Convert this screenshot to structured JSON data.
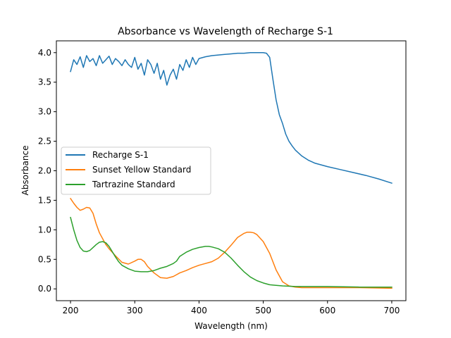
{
  "chart_data": {
    "type": "line",
    "title": "Absorbance vs Wavelength of Recharge S-1",
    "xlabel": "Wavelength (nm)",
    "ylabel": "Absorbance",
    "xlim": [
      178,
      722
    ],
    "ylim": [
      -0.2,
      4.2
    ],
    "xticks": [
      200,
      300,
      400,
      500,
      600,
      700
    ],
    "yticks": [
      0.0,
      0.5,
      1.0,
      1.5,
      2.0,
      2.5,
      3.0,
      3.5,
      4.0
    ],
    "xtick_labels": [
      "200",
      "300",
      "400",
      "500",
      "600",
      "700"
    ],
    "ytick_labels": [
      "0.0",
      "0.5",
      "1.0",
      "1.5",
      "2.0",
      "2.5",
      "3.0",
      "3.5",
      "4.0"
    ],
    "grid": false,
    "legend_position": "center-left",
    "series": [
      {
        "name": "Recharge S-1",
        "color": "#1f77b4",
        "x": [
          200,
          205,
          210,
          215,
          220,
          225,
          230,
          235,
          240,
          245,
          250,
          255,
          260,
          265,
          270,
          275,
          280,
          285,
          290,
          295,
          300,
          305,
          310,
          315,
          320,
          325,
          330,
          335,
          340,
          345,
          350,
          355,
          360,
          365,
          370,
          375,
          380,
          385,
          390,
          395,
          400,
          410,
          420,
          430,
          440,
          450,
          460,
          470,
          480,
          490,
          500,
          505,
          510,
          515,
          520,
          525,
          530,
          535,
          540,
          545,
          550,
          560,
          570,
          580,
          590,
          600,
          620,
          640,
          660,
          680,
          700
        ],
        "y": [
          3.68,
          3.88,
          3.8,
          3.93,
          3.75,
          3.95,
          3.85,
          3.9,
          3.78,
          3.95,
          3.82,
          3.88,
          3.94,
          3.8,
          3.9,
          3.85,
          3.78,
          3.88,
          3.8,
          3.75,
          3.92,
          3.72,
          3.82,
          3.62,
          3.88,
          3.8,
          3.65,
          3.82,
          3.55,
          3.7,
          3.45,
          3.62,
          3.72,
          3.55,
          3.8,
          3.7,
          3.88,
          3.75,
          3.92,
          3.8,
          3.9,
          3.93,
          3.95,
          3.96,
          3.97,
          3.98,
          3.99,
          3.99,
          4.0,
          4.0,
          4.0,
          3.99,
          3.92,
          3.55,
          3.2,
          2.95,
          2.8,
          2.62,
          2.5,
          2.42,
          2.35,
          2.25,
          2.18,
          2.13,
          2.1,
          2.07,
          2.02,
          1.97,
          1.92,
          1.86,
          1.79
        ]
      },
      {
        "name": "Sunset Yellow Standard",
        "color": "#ff7f0e",
        "x": [
          200,
          205,
          210,
          215,
          220,
          225,
          230,
          235,
          240,
          245,
          250,
          255,
          260,
          270,
          280,
          290,
          300,
          305,
          310,
          315,
          320,
          330,
          340,
          350,
          360,
          365,
          370,
          380,
          390,
          400,
          410,
          420,
          430,
          440,
          450,
          460,
          470,
          475,
          480,
          485,
          490,
          500,
          510,
          520,
          530,
          540,
          550,
          560,
          600,
          650,
          700
        ],
        "y": [
          1.53,
          1.45,
          1.38,
          1.33,
          1.35,
          1.38,
          1.37,
          1.28,
          1.1,
          0.95,
          0.85,
          0.75,
          0.68,
          0.56,
          0.45,
          0.42,
          0.47,
          0.5,
          0.5,
          0.46,
          0.38,
          0.27,
          0.19,
          0.18,
          0.21,
          0.24,
          0.27,
          0.31,
          0.36,
          0.4,
          0.43,
          0.46,
          0.52,
          0.62,
          0.74,
          0.87,
          0.94,
          0.96,
          0.96,
          0.95,
          0.92,
          0.8,
          0.6,
          0.32,
          0.12,
          0.05,
          0.03,
          0.02,
          0.02,
          0.02,
          0.01
        ]
      },
      {
        "name": "Tartrazine Standard",
        "color": "#2ca02c",
        "x": [
          200,
          205,
          210,
          215,
          220,
          225,
          230,
          235,
          240,
          245,
          250,
          255,
          260,
          265,
          270,
          275,
          280,
          290,
          300,
          310,
          320,
          330,
          340,
          350,
          360,
          365,
          370,
          380,
          390,
          400,
          410,
          415,
          420,
          430,
          440,
          450,
          460,
          470,
          480,
          490,
          500,
          510,
          520,
          530,
          550,
          600,
          650,
          700
        ],
        "y": [
          1.21,
          1.0,
          0.82,
          0.7,
          0.64,
          0.63,
          0.65,
          0.7,
          0.75,
          0.79,
          0.8,
          0.78,
          0.72,
          0.63,
          0.54,
          0.46,
          0.4,
          0.34,
          0.3,
          0.29,
          0.29,
          0.31,
          0.35,
          0.38,
          0.43,
          0.47,
          0.55,
          0.62,
          0.67,
          0.7,
          0.72,
          0.72,
          0.71,
          0.68,
          0.62,
          0.52,
          0.4,
          0.29,
          0.2,
          0.14,
          0.1,
          0.07,
          0.06,
          0.05,
          0.04,
          0.04,
          0.03,
          0.03
        ]
      }
    ]
  }
}
